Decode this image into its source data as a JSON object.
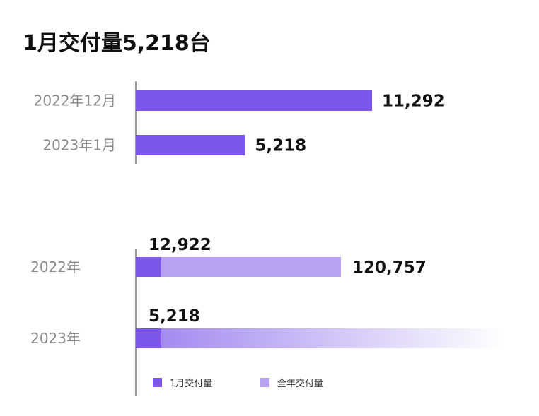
{
  "title": "1月交付量5,218台",
  "colors": {
    "monthly": "#7c57ea",
    "annual": "#b9a2f3",
    "axis": "#555555"
  },
  "chart_data": [
    {
      "type": "bar",
      "orientation": "horizontal",
      "categories": [
        "2022年12月",
        "2023年1月"
      ],
      "values": [
        11292,
        5218
      ],
      "value_labels": [
        "11,292",
        "5,218"
      ],
      "xlim": [
        0,
        12000
      ]
    },
    {
      "type": "bar",
      "orientation": "horizontal",
      "stacked": true,
      "categories": [
        "2022年",
        "2023年"
      ],
      "series": [
        {
          "name": "1月交付量",
          "values": [
            12922,
            5218
          ],
          "value_labels": [
            "12,922",
            "5,218"
          ]
        },
        {
          "name": "全年交付量",
          "values": [
            120757,
            null
          ],
          "value_labels": [
            "120,757",
            ""
          ]
        }
      ],
      "xlim": [
        0,
        150000
      ],
      "legend": {
        "position": "bottom",
        "items": [
          "1月交付量",
          "全年交付量"
        ]
      },
      "annotation": "2023年 annual bar fades out (unknown total)"
    }
  ]
}
